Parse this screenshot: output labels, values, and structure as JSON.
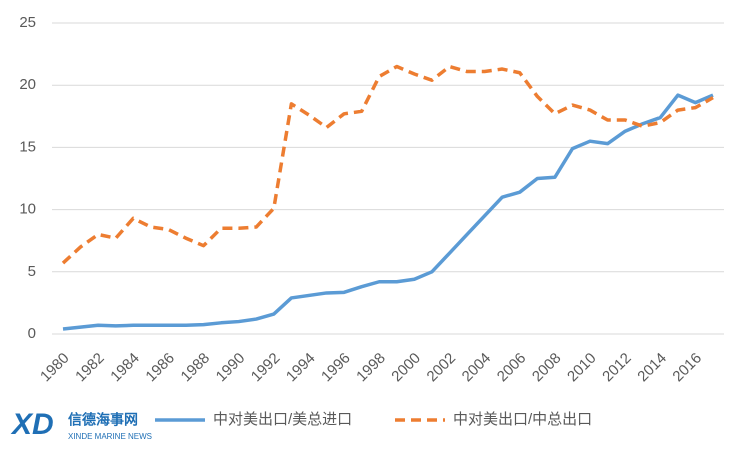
{
  "chart_data": {
    "type": "line",
    "categories": [
      "1980",
      null,
      "1982",
      null,
      "1984",
      null,
      "1986",
      null,
      "1988",
      null,
      "1990",
      null,
      "1992",
      null,
      "1994",
      null,
      "1996",
      null,
      "1998",
      null,
      "2000",
      null,
      "2002",
      null,
      "2004",
      null,
      "2006",
      null,
      "2008",
      null,
      "2010",
      null,
      "2012",
      null,
      "2014",
      null,
      "2016",
      null
    ],
    "series": [
      {
        "name": "中对美出口/美总进口",
        "color": "#5b9bd5",
        "dash": false,
        "values": [
          0.4,
          0.55,
          0.7,
          0.65,
          0.7,
          0.7,
          0.7,
          0.7,
          0.75,
          0.9,
          1.0,
          1.2,
          1.6,
          2.9,
          3.1,
          3.3,
          3.35,
          3.8,
          4.2,
          4.2,
          4.4,
          5.0,
          6.5,
          8.0,
          9.5,
          11.0,
          11.4,
          12.5,
          12.6,
          14.9,
          15.5,
          15.3,
          16.3,
          16.9,
          17.4,
          19.2,
          18.6,
          19.2
        ]
      },
      {
        "name": "中对美出口/中总出口",
        "color": "#ed7d31",
        "dash": true,
        "values": [
          5.7,
          7.0,
          8.0,
          7.7,
          9.3,
          8.6,
          8.4,
          7.7,
          7.1,
          8.5,
          8.5,
          8.6,
          10.1,
          18.5,
          17.6,
          16.6,
          17.7,
          17.9,
          20.7,
          21.5,
          20.9,
          20.4,
          21.5,
          21.1,
          21.1,
          21.3,
          21.0,
          19.1,
          17.7,
          18.4,
          18.0,
          17.2,
          17.2,
          16.7,
          17.0,
          18.0,
          18.2,
          19.0
        ]
      }
    ],
    "ylim": [
      0,
      25
    ],
    "yticks": [
      0,
      5,
      10,
      15,
      20,
      25
    ],
    "grid": true,
    "legend": "bottom"
  },
  "watermark": {
    "logo": "XD",
    "name": "信德海事网",
    "subtitle": "XINDE MARINE NEWS"
  }
}
